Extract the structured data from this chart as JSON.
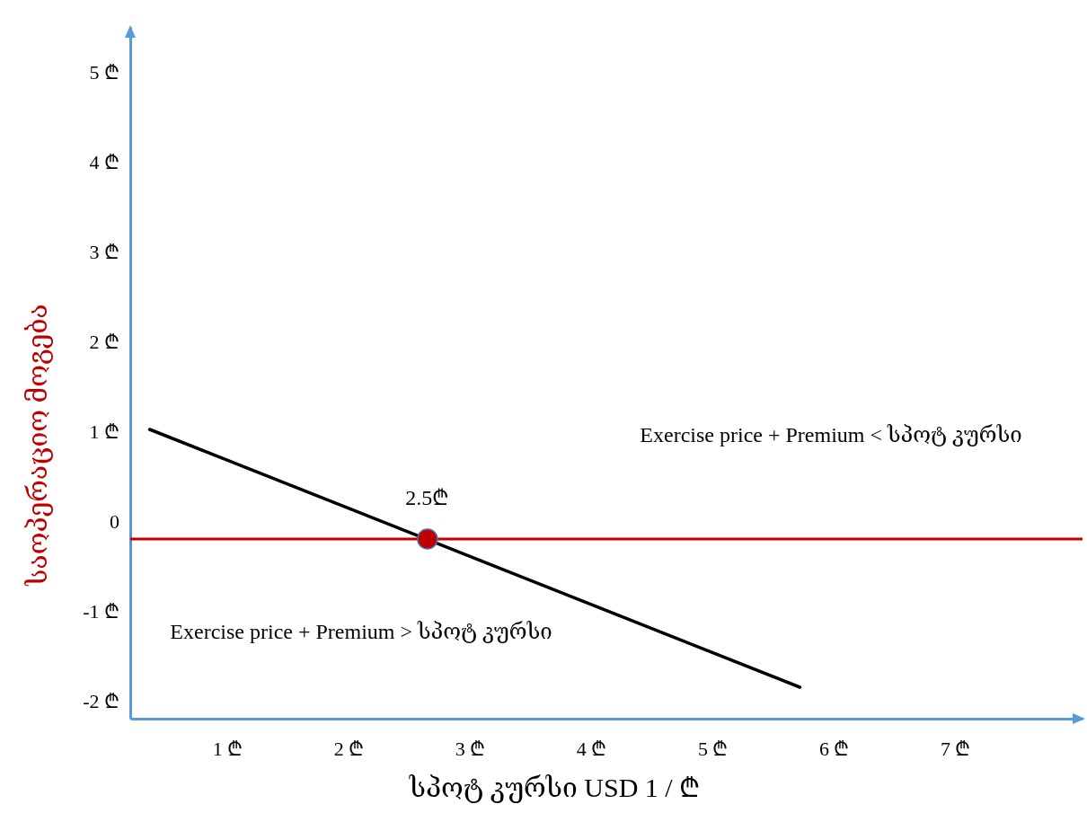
{
  "chart_data": {
    "type": "line",
    "xlabel": "სპოტ კურსი USD 1 / ₾",
    "ylabel": "საოპერაციო მოგება",
    "xlim": [
      0.2,
      8.05
    ],
    "ylim": [
      -2.2,
      5.5
    ],
    "xticks": [
      {
        "value": 1,
        "label": "1 ₾"
      },
      {
        "value": 2,
        "label": "2 ₾"
      },
      {
        "value": 3,
        "label": "3 ₾"
      },
      {
        "value": 4,
        "label": "4 ₾"
      },
      {
        "value": 5,
        "label": "5 ₾"
      },
      {
        "value": 6,
        "label": "6 ₾"
      },
      {
        "value": 7,
        "label": "7 ₾"
      }
    ],
    "yticks": [
      {
        "value": -2,
        "label": "-2 ₾"
      },
      {
        "value": -1,
        "label": "-1 ₾"
      },
      0,
      {
        "value": 1,
        "label": "1 ₾"
      },
      {
        "value": 2,
        "label": "2 ₾"
      },
      {
        "value": 3,
        "label": "3 ₾"
      },
      {
        "value": 4,
        "label": "4 ₾"
      },
      {
        "value": 5,
        "label": "5 ₾"
      }
    ],
    "series": [
      {
        "color": "#000000",
        "x": [
          0.36,
          5.72
        ],
        "values": [
          1.02,
          -1.85
        ]
      },
      {
        "type": "scatter",
        "color": "#c00000",
        "marker": "circle",
        "x": [
          2.65
        ],
        "values": [
          -0.2
        ]
      }
    ],
    "ref_lines": [
      {
        "axis": "y",
        "value": -0.2,
        "color": "#c00000"
      }
    ],
    "annotations": [
      {
        "text": "2.5₾",
        "x": 2.65,
        "y": -0.2
      },
      "Exercise price + Premium < სპოტ კურსი",
      "Exercise price + Premium > სპოტ კურსი"
    ],
    "grid": false
  }
}
